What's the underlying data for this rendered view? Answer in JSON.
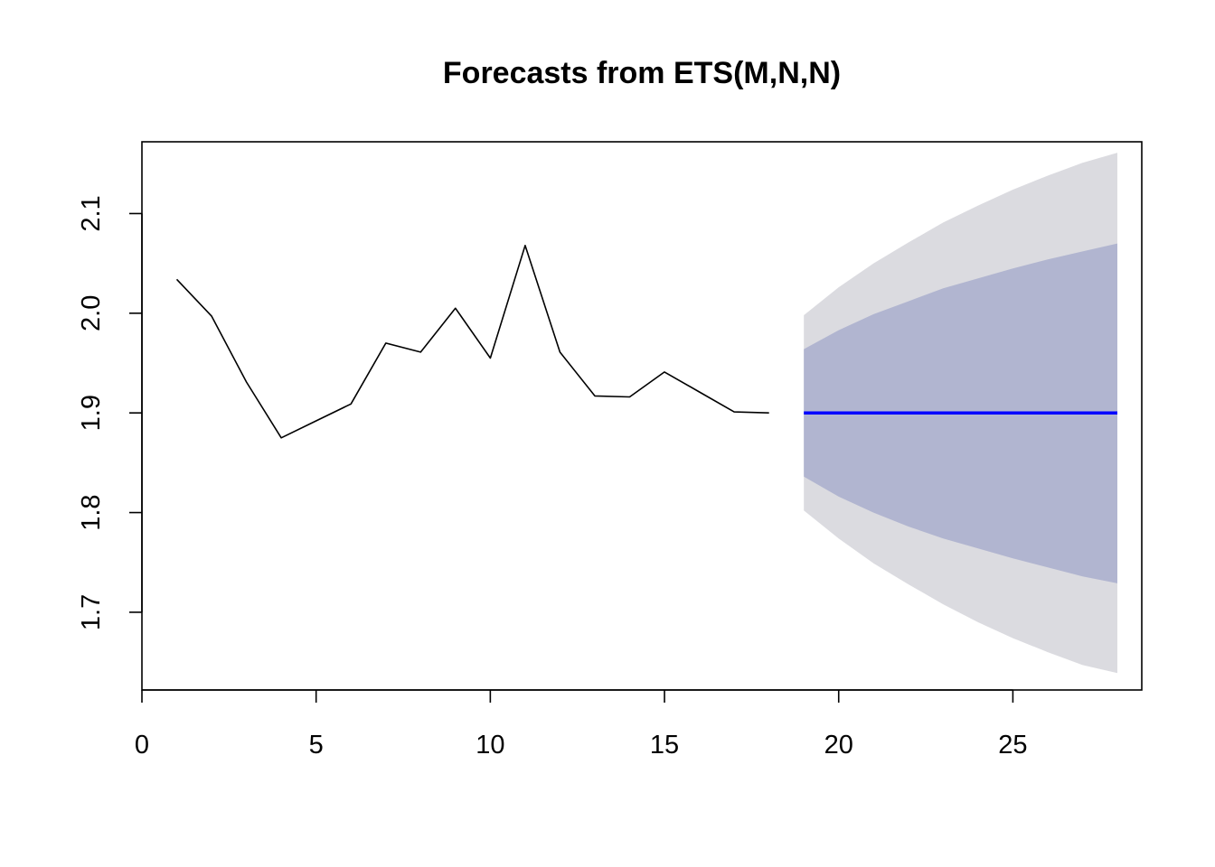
{
  "chart_data": {
    "type": "line",
    "title": "Forecasts from ETS(M,N,N)",
    "xlabel": "",
    "ylabel": "",
    "xlim": [
      0,
      28.7
    ],
    "ylim": [
      1.622,
      2.172
    ],
    "x_ticks": [
      0,
      5,
      10,
      15,
      20,
      25
    ],
    "y_ticks": [
      1.7,
      1.8,
      1.9,
      2.0,
      2.1
    ],
    "x_tick_labels": [
      "0",
      "5",
      "10",
      "15",
      "20",
      "25"
    ],
    "y_tick_labels": [
      "1.7",
      "1.8",
      "1.9",
      "2.0",
      "2.1"
    ],
    "grid": false,
    "legend": false,
    "series": [
      {
        "role": "observed",
        "color": "#000000",
        "x": [
          1,
          2,
          3,
          4,
          5,
          6,
          7,
          8,
          9,
          10,
          11,
          12,
          13,
          14,
          15,
          16,
          17,
          18
        ],
        "values": [
          2.034,
          1.997,
          1.931,
          1.875,
          1.892,
          1.909,
          1.97,
          1.961,
          2.005,
          1.955,
          2.068,
          1.961,
          1.917,
          1.916,
          1.941,
          1.921,
          1.901,
          1.9
        ]
      },
      {
        "role": "forecast",
        "color": "#0000ff",
        "x": [
          19,
          20,
          21,
          22,
          23,
          24,
          25,
          26,
          27,
          28
        ],
        "values": [
          1.9,
          1.9,
          1.9,
          1.9,
          1.9,
          1.9,
          1.9,
          1.9,
          1.9,
          1.9
        ]
      }
    ],
    "intervals": [
      {
        "level": "95",
        "color": "#dbdbe0",
        "x": [
          19,
          20,
          21,
          22,
          23,
          24,
          25,
          26,
          27,
          28
        ],
        "lower": [
          1.802,
          1.774,
          1.749,
          1.728,
          1.708,
          1.69,
          1.674,
          1.66,
          1.647,
          1.639
        ],
        "upper": [
          1.998,
          2.026,
          2.05,
          2.071,
          2.091,
          2.108,
          2.124,
          2.138,
          2.151,
          2.161
        ]
      },
      {
        "level": "80",
        "color": "#b1b5d0",
        "x": [
          19,
          20,
          21,
          22,
          23,
          24,
          25,
          26,
          27,
          28
        ],
        "lower": [
          1.836,
          1.816,
          1.8,
          1.786,
          1.774,
          1.764,
          1.754,
          1.745,
          1.736,
          1.729
        ],
        "upper": [
          1.964,
          1.983,
          1.999,
          2.012,
          2.025,
          2.035,
          2.045,
          2.054,
          2.062,
          2.07
        ]
      }
    ]
  }
}
